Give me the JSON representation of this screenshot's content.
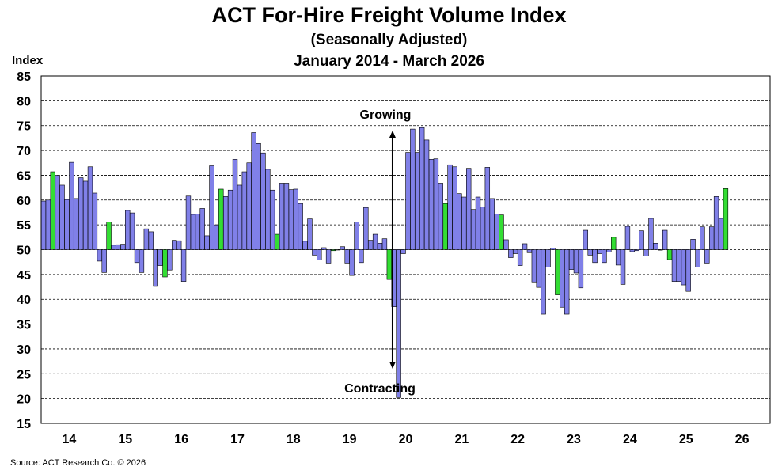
{
  "chart_data": {
    "type": "bar",
    "title": "ACT For-Hire Freight Volume Index",
    "subtitle": "(Seasonally Adjusted)",
    "period": "January 2014 - March 2026",
    "ylabel": "Index",
    "ylim": [
      15,
      85
    ],
    "baseline": 50,
    "yticks": [
      "15",
      "20",
      "25",
      "30",
      "35",
      "40",
      "45",
      "50",
      "55",
      "60",
      "65",
      "70",
      "75",
      "80",
      "85"
    ],
    "xticks": [
      "14",
      "15",
      "16",
      "17",
      "18",
      "19",
      "20",
      "21",
      "22",
      "23",
      "24",
      "25",
      "26"
    ],
    "grid": true,
    "bar_color": "#8080e8",
    "highlight_color": "#33dd33",
    "annotations": {
      "top": "Growing",
      "bottom": "Contracting"
    },
    "source": "Source: ACT Research Co. © 2026",
    "series": [
      {
        "year": "2014",
        "values": [
          59.8,
          60.0,
          65.7,
          65.0,
          63.0,
          60.1,
          67.6,
          60.3,
          64.5,
          63.8,
          66.7,
          61.4
        ]
      },
      {
        "year": "2015",
        "values": [
          47.7,
          45.4,
          55.6,
          50.9,
          51.0,
          51.1,
          57.9,
          57.4,
          47.4,
          45.4,
          54.2,
          53.6
        ]
      },
      {
        "year": "2016",
        "values": [
          42.6,
          46.8,
          44.5,
          45.9,
          51.9,
          51.8,
          43.6,
          60.8,
          57.1,
          57.2,
          58.3,
          52.8
        ]
      },
      {
        "year": "2017",
        "values": [
          66.9,
          55.0,
          62.2,
          60.7,
          62.0,
          68.2,
          63.0,
          65.7,
          67.5,
          73.6,
          71.4,
          69.5
        ]
      },
      {
        "year": "2018",
        "values": [
          66.2,
          62.0,
          53.1,
          63.4,
          63.4,
          62.1,
          62.2,
          59.3,
          51.7,
          56.2,
          48.9,
          47.9
        ]
      },
      {
        "year": "2019",
        "values": [
          50.4,
          47.3,
          49.8,
          50.0,
          50.6,
          47.3,
          44.8,
          55.6,
          47.4,
          58.5,
          51.9,
          53.1
        ]
      },
      {
        "year": "2020",
        "values": [
          51.3,
          52.2,
          44.0,
          38.5,
          20.2,
          49.2,
          69.6,
          74.3,
          69.6,
          74.6,
          72.1,
          68.2
        ]
      },
      {
        "year": "2021",
        "values": [
          68.3,
          63.4,
          59.3,
          67.1,
          66.7,
          61.3,
          60.6,
          66.4,
          58.1,
          60.6,
          58.6,
          66.6
        ]
      },
      {
        "year": "2022",
        "values": [
          60.3,
          57.2,
          57.0,
          52.0,
          48.4,
          49.2,
          46.8,
          51.2,
          49.4,
          43.5,
          42.4,
          37.0
        ]
      },
      {
        "year": "2023",
        "values": [
          46.5,
          50.3,
          40.9,
          38.4,
          37.0,
          46.0,
          45.3,
          42.3,
          53.9,
          48.9,
          47.4,
          49.2
        ]
      },
      {
        "year": "2024",
        "values": [
          47.4,
          49.5,
          52.5,
          46.9,
          43.0,
          54.7,
          49.6,
          49.8,
          53.8,
          48.7,
          56.3,
          51.3
        ]
      },
      {
        "year": "2025",
        "values": [
          49.9,
          53.9,
          48.0,
          43.6,
          43.6,
          42.9,
          41.6,
          52.1,
          46.5,
          54.6,
          47.3,
          54.6
        ]
      },
      {
        "year": "2026",
        "values": [
          60.7,
          56.3,
          62.3
        ]
      }
    ],
    "highlight_indices": [
      2,
      14,
      26,
      38,
      50,
      62,
      74,
      86,
      98,
      110,
      122,
      134,
      146
    ]
  }
}
